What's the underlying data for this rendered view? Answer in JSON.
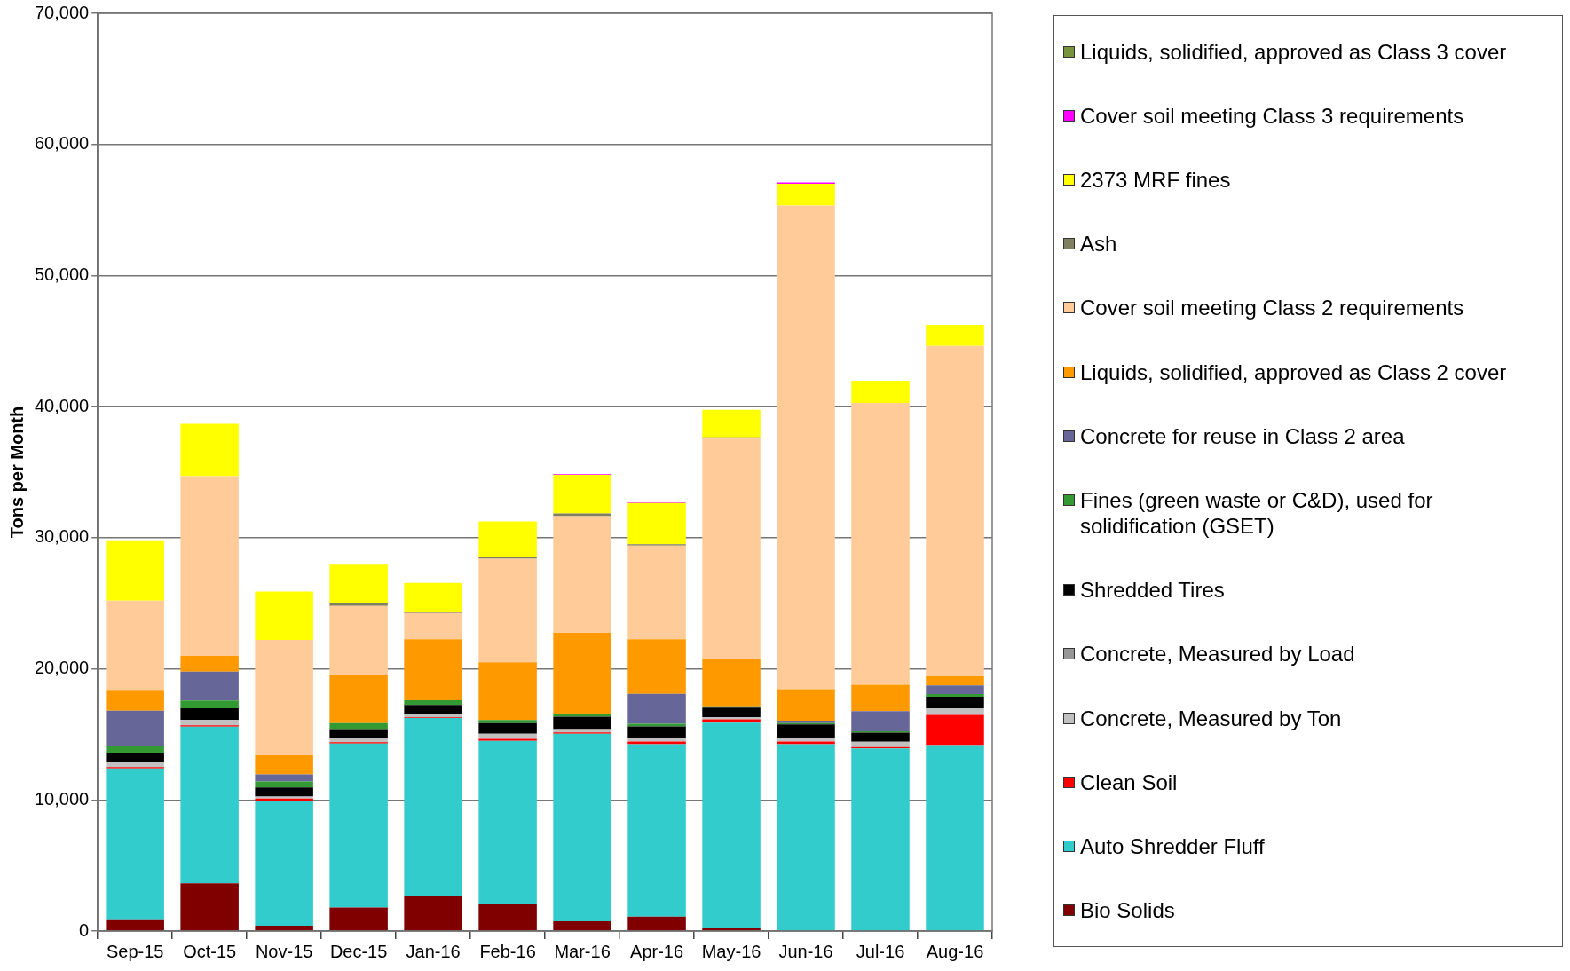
{
  "chart_data": {
    "type": "bar",
    "stacked": true,
    "ylabel": "Tons per Month",
    "categories": [
      "Sep-15",
      "Oct-15",
      "Nov-15",
      "Dec-15",
      "Jan-16",
      "Feb-16",
      "Mar-16",
      "Apr-16",
      "May-16",
      "Jun-16",
      "Jul-16",
      "Aug-16"
    ],
    "series": [
      {
        "name": "Bio Solids",
        "color": "#800000",
        "values": [
          900,
          3640,
          400,
          1800,
          2700,
          2050,
          750,
          1100,
          200,
          0,
          0,
          0
        ]
      },
      {
        "name": "Auto Shredder Fluff",
        "color": "#33cccc",
        "values": [
          11500,
          11950,
          9500,
          12500,
          13550,
          12450,
          14300,
          13150,
          15700,
          14250,
          13930,
          14180
        ]
      },
      {
        "name": "Clean Soil",
        "color": "#ff0000",
        "values": [
          100,
          100,
          200,
          100,
          50,
          150,
          100,
          200,
          250,
          200,
          100,
          2300
        ]
      },
      {
        "name": "Concrete, Measured by Ton",
        "color": "#c0c0c0",
        "values": [
          400,
          400,
          150,
          350,
          200,
          400,
          250,
          270,
          150,
          300,
          400,
          500
        ]
      },
      {
        "name": "Concrete, Measured by Load",
        "color": "#969696",
        "values": [
          0,
          0,
          0,
          0,
          0,
          0,
          0,
          0,
          0,
          0,
          0,
          0
        ]
      },
      {
        "name": "Shredded Tires",
        "color": "#000000",
        "values": [
          700,
          900,
          700,
          650,
          750,
          800,
          950,
          880,
          750,
          1000,
          700,
          900
        ]
      },
      {
        "name": "Fines (green waste or C&D), used for solidification (GSET)",
        "color": "#339933",
        "values": [
          500,
          600,
          450,
          450,
          350,
          250,
          200,
          200,
          100,
          100,
          100,
          200
        ]
      },
      {
        "name": "Concrete for reuse in Class 2 area",
        "color": "#666699",
        "values": [
          2700,
          2200,
          550,
          0,
          0,
          0,
          0,
          2300,
          0,
          200,
          1550,
          650
        ]
      },
      {
        "name": "Liquids, solidified, approved as Class 2 cover",
        "color": "#ff9900",
        "values": [
          1600,
          1200,
          1450,
          3650,
          4650,
          4400,
          6200,
          4150,
          3600,
          2400,
          2000,
          700
        ]
      },
      {
        "name": "Cover soil meeting Class 2 requirements",
        "color": "#ffcc99",
        "values": [
          6800,
          13700,
          8800,
          5300,
          2000,
          7900,
          8900,
          7150,
          16800,
          36900,
          21500,
          25200
        ]
      },
      {
        "name": "Ash",
        "color": "#808060",
        "values": [
          0,
          0,
          0,
          250,
          100,
          150,
          200,
          100,
          100,
          0,
          0,
          0
        ]
      },
      {
        "name": "2373 MRF fines",
        "color": "#ffff00",
        "values": [
          4600,
          4000,
          3700,
          2900,
          2200,
          2700,
          2950,
          3150,
          2100,
          1650,
          1700,
          1600
        ]
      },
      {
        "name": "Cover soil meeting Class 3 requirements",
        "color": "#ff00ff",
        "values": [
          0,
          0,
          0,
          0,
          0,
          0,
          50,
          50,
          0,
          100,
          0,
          0
        ]
      },
      {
        "name": "Liquids, solidified, approved as Class 3 cover",
        "color": "#77933c",
        "values": [
          0,
          0,
          0,
          0,
          0,
          0,
          0,
          0,
          0,
          0,
          0,
          0
        ]
      }
    ],
    "ylim": [
      0,
      70000
    ],
    "yticks": [
      {
        "value": 0,
        "label": "0"
      },
      {
        "value": 10000,
        "label": "10,000"
      },
      {
        "value": 20000,
        "label": "20,000"
      },
      {
        "value": 30000,
        "label": "30,000"
      },
      {
        "value": 40000,
        "label": "40,000"
      },
      {
        "value": 50000,
        "label": "50,000"
      },
      {
        "value": 60000,
        "label": "60,000"
      },
      {
        "value": 70000,
        "label": "70,000"
      }
    ],
    "grid": "y",
    "legend": "right"
  }
}
